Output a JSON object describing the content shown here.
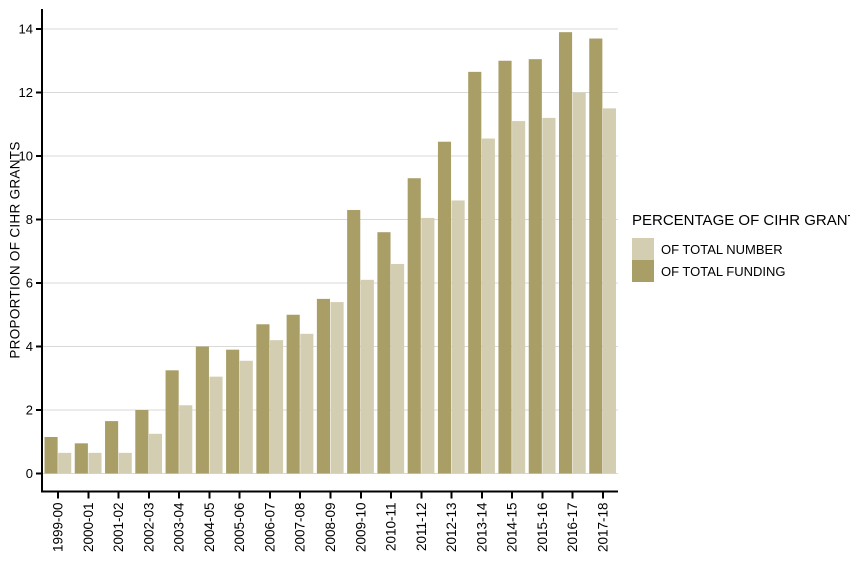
{
  "figure": {
    "background": "#ffffff",
    "y_axis_title": "PROPORTION OF CIHR GRANTS",
    "legend": {
      "title": "PERCENTAGE OF CIHR GRANTS",
      "items": [
        {
          "label": "OF TOTAL NUMBER",
          "color": "#d3ceb2"
        },
        {
          "label": "OF TOTAL FUNDING",
          "color": "#a89e66"
        }
      ]
    }
  },
  "chart_data": {
    "type": "bar",
    "grouped": true,
    "title": "",
    "xlabel": "",
    "ylabel": "PROPORTION OF CIHR GRANTS",
    "categories": [
      "1999-00",
      "2000-01",
      "2001-02",
      "2002-03",
      "2003-04",
      "2004-05",
      "2005-06",
      "2006-07",
      "2007-08",
      "2008-09",
      "2009-10",
      "2010-11",
      "2011-12",
      "2012-13",
      "2013-14",
      "2014-15",
      "2015-16",
      "2016-17",
      "2017-18"
    ],
    "series": [
      {
        "name": "OF TOTAL FUNDING",
        "color": "#a89e66",
        "values": [
          1.15,
          0.95,
          1.65,
          2.0,
          3.25,
          4.0,
          3.9,
          4.7,
          5.0,
          5.5,
          8.3,
          7.6,
          9.3,
          10.45,
          12.65,
          13.0,
          13.05,
          13.9,
          13.7
        ]
      },
      {
        "name": "OF TOTAL NUMBER",
        "color": "#d3ceb2",
        "values": [
          0.65,
          0.65,
          0.65,
          1.25,
          2.15,
          3.05,
          3.55,
          4.2,
          4.4,
          5.4,
          6.1,
          6.6,
          8.05,
          8.6,
          10.55,
          11.1,
          11.2,
          12.0,
          11.5
        ]
      }
    ],
    "bar_draw_order": [
      "OF TOTAL FUNDING",
      "OF TOTAL NUMBER"
    ],
    "legend_order": [
      "OF TOTAL NUMBER",
      "OF TOTAL FUNDING"
    ],
    "ylim": [
      0,
      14.6
    ],
    "yticks": [
      0,
      2,
      4,
      6,
      8,
      10,
      12,
      14
    ],
    "grid": "horizontal-major",
    "gridline_color": "#d9d9d9",
    "axis_color": "#000000",
    "legend_position": "right",
    "x_tick_label_rotation": -90
  }
}
